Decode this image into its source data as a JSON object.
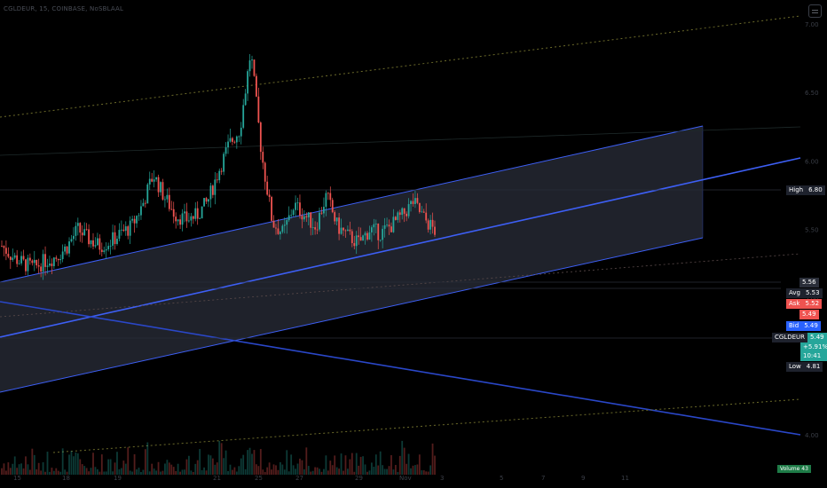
{
  "header": {
    "symbol_line": "CGLDEUR, 15, COINBASE, NoSBLAAL"
  },
  "colors": {
    "background": "#000000",
    "channel_fill": "#2a2e39",
    "channel_line": "#3d5ff5",
    "trend_line": "#2a47c8",
    "up_candle": "#26a69a",
    "down_candle": "#ef5350",
    "dotted_line": "#6b6a2a"
  },
  "price_axis": {
    "ticks": [
      "7.00",
      "6.50",
      "6.00",
      "5.50",
      "5.00",
      "4.50",
      "4.00"
    ]
  },
  "time_axis": {
    "ticks": [
      "15",
      "18",
      "19",
      "21",
      "25",
      "27",
      "29",
      "Nov",
      "3",
      "5",
      "7",
      "9",
      "11"
    ]
  },
  "price_tags": [
    {
      "name": "high-tag",
      "label": "High",
      "value": "6.80",
      "label_bg": "#1e222d",
      "value_bg": "#1e222d"
    },
    {
      "name": "last-close-tag",
      "label": "",
      "value": "5.56",
      "label_bg": "",
      "value_bg": "#2a2e39"
    },
    {
      "name": "avg-tag",
      "label": "Avg",
      "value": "5.53",
      "label_bg": "#1e222d",
      "value_bg": "#1e222d"
    },
    {
      "name": "ask-tag",
      "label": "Ask",
      "value": "5.52",
      "label_bg": "#ef5350",
      "value_bg": "#ef5350"
    },
    {
      "name": "mid-tag",
      "label": "",
      "value": "5.49",
      "label_bg": "",
      "value_bg": "#ef5350"
    },
    {
      "name": "bid-tag",
      "label": "Bid",
      "value": "5.49",
      "label_bg": "#2962ff",
      "value_bg": "#2962ff"
    },
    {
      "name": "symbol-price-tag",
      "label": "CGLDEUR",
      "value": "5.49",
      "label_bg": "#1e222d",
      "value_bg": "#26a69a"
    },
    {
      "name": "low-tag",
      "label": "Low",
      "value": "4.81",
      "label_bg": "#1e222d",
      "value_bg": "#1e222d"
    }
  ],
  "change_tag": {
    "change": "+5.91%",
    "countdown": "10:41"
  },
  "volume_tag": {
    "label": "Volume",
    "value": "43"
  },
  "chart_data": {
    "type": "candlestick",
    "symbol": "CGLDEUR",
    "interval": "15",
    "exchange": "COINBASE",
    "ylim": [
      3.95,
      7.1
    ],
    "x_ticks": [
      "15",
      "18",
      "19",
      "21",
      "25",
      "27",
      "29",
      "Nov",
      "3",
      "5",
      "7",
      "9",
      "11"
    ],
    "series": [
      {
        "name": "price",
        "values": [
          5.38,
          5.3,
          5.25,
          5.22,
          5.27,
          5.3,
          5.37,
          5.5,
          5.43,
          5.38,
          5.41,
          5.47,
          5.52,
          5.68,
          5.9,
          5.74,
          5.61,
          5.57,
          5.6,
          5.7,
          5.92,
          6.12,
          6.23,
          6.8,
          6.05,
          5.55,
          5.47,
          5.68,
          5.6,
          5.52,
          5.75,
          5.52,
          5.45,
          5.4,
          5.5,
          5.47,
          5.53,
          5.6,
          5.7,
          5.58,
          5.49
        ]
      }
    ],
    "high": 6.8,
    "low": 4.81,
    "last": 5.49,
    "average": 5.53,
    "ask": 5.52,
    "bid": 5.49,
    "change_percent": "+5.91%",
    "regression_channel": {
      "start_price_mid": 5.55,
      "end_price_mid": 6.45,
      "width": 0.85
    },
    "grid": false
  }
}
